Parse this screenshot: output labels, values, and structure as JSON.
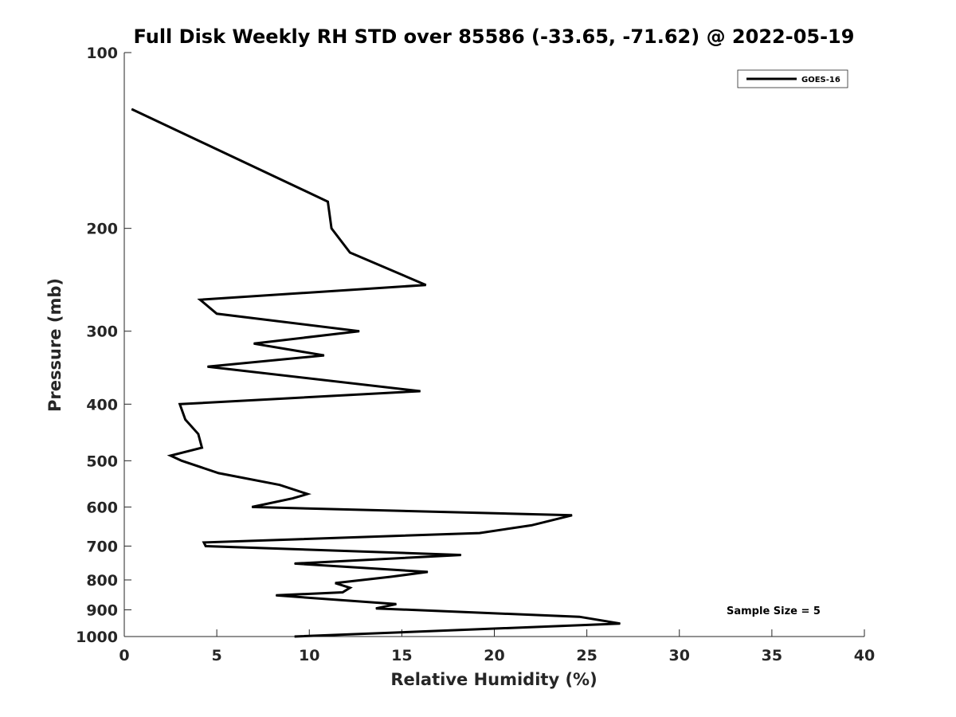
{
  "chart_data": {
    "type": "line",
    "title": "Full Disk Weekly RH STD over 85586 (-33.65, -71.62) @ 2022-05-19",
    "xlabel": "Relative Humidity (%)",
    "ylabel": "Pressure (mb)",
    "xlim": [
      0,
      40
    ],
    "ylim": [
      100,
      1000
    ],
    "y_scale": "log",
    "y_reversed": true,
    "x_ticks": [
      0,
      5,
      10,
      15,
      20,
      25,
      30,
      35,
      40
    ],
    "y_ticks": [
      100,
      200,
      300,
      400,
      500,
      600,
      700,
      800,
      900,
      1000
    ],
    "grid": false,
    "legend": {
      "position": "top-right",
      "entries": [
        "GOES-16"
      ]
    },
    "annotation": "Sample Size = 5",
    "series": [
      {
        "name": "GOES-16",
        "color": "#000000",
        "points": [
          [
            0.4,
            125
          ],
          [
            11.0,
            180
          ],
          [
            11.2,
            200
          ],
          [
            12.2,
            220
          ],
          [
            16.3,
            250
          ],
          [
            4.1,
            265
          ],
          [
            5.0,
            280
          ],
          [
            12.7,
            300
          ],
          [
            7.0,
            315
          ],
          [
            10.8,
            330
          ],
          [
            4.5,
            345
          ],
          [
            16.0,
            380
          ],
          [
            3.0,
            400
          ],
          [
            3.3,
            425
          ],
          [
            4.0,
            450
          ],
          [
            4.2,
            475
          ],
          [
            2.5,
            490
          ],
          [
            3.1,
            500
          ],
          [
            5.1,
            525
          ],
          [
            8.4,
            550
          ],
          [
            9.9,
            570
          ],
          [
            9.1,
            580
          ],
          [
            6.9,
            600
          ],
          [
            24.2,
            620
          ],
          [
            22.0,
            645
          ],
          [
            19.2,
            665
          ],
          [
            4.3,
            690
          ],
          [
            4.4,
            700
          ],
          [
            18.2,
            725
          ],
          [
            9.2,
            750
          ],
          [
            16.4,
            775
          ],
          [
            14.4,
            790
          ],
          [
            11.4,
            810
          ],
          [
            12.2,
            825
          ],
          [
            11.8,
            840
          ],
          [
            8.2,
            850
          ],
          [
            14.7,
            880
          ],
          [
            13.6,
            895
          ],
          [
            24.6,
            925
          ],
          [
            26.8,
            950
          ],
          [
            18.0,
            975
          ],
          [
            9.2,
            1000
          ]
        ]
      }
    ]
  }
}
